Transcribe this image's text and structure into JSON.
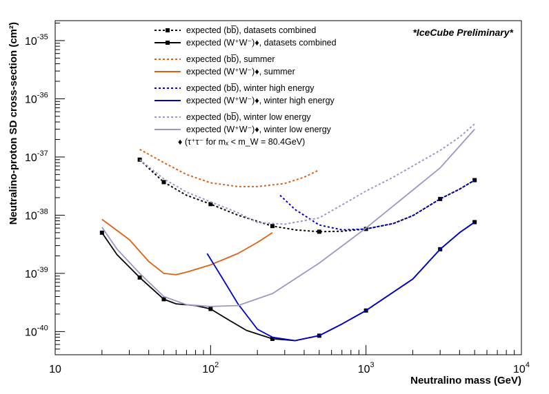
{
  "chart_data": {
    "type": "line",
    "title": "",
    "annotation": "*IceCube Preliminary*",
    "xlabel": "Neutralino mass (GeV)",
    "ylabel": "Neutralino-proton SD cross-section (cm²)",
    "xscale": "log",
    "yscale": "log",
    "xlim": [
      10,
      10000
    ],
    "ylim": [
      4e-41,
      2.2e-35
    ],
    "x_ticks": [
      {
        "v": 10,
        "base": "10",
        "exp": ""
      },
      {
        "v": 100,
        "base": "10",
        "exp": "2"
      },
      {
        "v": 1000,
        "base": "10",
        "exp": "3"
      },
      {
        "v": 10000,
        "base": "10",
        "exp": "4"
      }
    ],
    "y_ticks": [
      {
        "v": 1e-40,
        "base": "10",
        "exp": "-40"
      },
      {
        "v": 1e-39,
        "base": "10",
        "exp": "-39"
      },
      {
        "v": 1e-38,
        "base": "10",
        "exp": "-38"
      },
      {
        "v": 1e-37,
        "base": "10",
        "exp": "-37"
      },
      {
        "v": 1e-36,
        "base": "10",
        "exp": "-36"
      },
      {
        "v": 1e-35,
        "base": "10",
        "exp": "-35"
      }
    ],
    "legend_position": "top-center",
    "legend_note": "♦ (τ⁺τ⁻ for mₓ < m_W = 80.4GeV)",
    "series": [
      {
        "name": "expected (bb̅), datasets combined",
        "color": "#000000",
        "dash": "dotted",
        "markers": true,
        "points": [
          [
            35,
            9e-38
          ],
          [
            40,
            6.4e-38
          ],
          [
            50,
            3.7e-38
          ],
          [
            70,
            2.2e-38
          ],
          [
            100,
            1.55e-38
          ],
          [
            150,
            1e-38
          ],
          [
            250,
            6.5e-39
          ],
          [
            350,
            5.6e-39
          ],
          [
            500,
            5.2e-39
          ],
          [
            700,
            5.3e-39
          ],
          [
            1000,
            5.8e-39
          ],
          [
            1500,
            7.2e-39
          ],
          [
            2000,
            9.8e-39
          ],
          [
            3000,
            1.9e-38
          ],
          [
            4000,
            2.8e-38
          ],
          [
            5000,
            4e-38
          ]
        ],
        "marker_points": [
          [
            35,
            9e-38
          ],
          [
            50,
            3.7e-38
          ],
          [
            100,
            1.55e-38
          ],
          [
            250,
            6.5e-39
          ],
          [
            500,
            5.2e-39
          ],
          [
            1000,
            5.8e-39
          ],
          [
            3000,
            1.9e-38
          ],
          [
            5000,
            4e-38
          ]
        ]
      },
      {
        "name": "expected (W⁺W⁻)♦, datasets combined",
        "color": "#000000",
        "dash": "solid",
        "markers": true,
        "points": [
          [
            20,
            5e-39
          ],
          [
            25,
            2.1e-39
          ],
          [
            35,
            8.5e-40
          ],
          [
            50,
            3.6e-40
          ],
          [
            60,
            3e-40
          ],
          [
            80,
            2.8e-40
          ],
          [
            100,
            2.45e-40
          ],
          [
            130,
            1.6e-40
          ],
          [
            170,
            1.05e-40
          ],
          [
            250,
            7.5e-41
          ],
          [
            350,
            7e-41
          ],
          [
            500,
            8.5e-41
          ],
          [
            700,
            1.35e-40
          ],
          [
            1000,
            2.3e-40
          ],
          [
            2000,
            8e-40
          ],
          [
            3000,
            2.6e-39
          ],
          [
            4000,
            5e-39
          ],
          [
            5000,
            7.6e-39
          ]
        ],
        "marker_points": [
          [
            20,
            5e-39
          ],
          [
            35,
            8.5e-40
          ],
          [
            50,
            3.6e-40
          ],
          [
            100,
            2.45e-40
          ],
          [
            250,
            7.5e-41
          ],
          [
            500,
            8.5e-41
          ],
          [
            1000,
            2.3e-40
          ],
          [
            3000,
            2.6e-39
          ],
          [
            5000,
            7.6e-39
          ]
        ]
      },
      {
        "name": "expected (bb̅), summer",
        "color": "#e06010",
        "dash": "dotted",
        "markers": false,
        "points": [
          [
            35,
            1.35e-37
          ],
          [
            50,
            8e-38
          ],
          [
            70,
            5e-38
          ],
          [
            100,
            3.6e-38
          ],
          [
            150,
            3.1e-38
          ],
          [
            200,
            3.1e-38
          ],
          [
            300,
            3.5e-38
          ],
          [
            400,
            4.5e-38
          ],
          [
            500,
            6e-38
          ]
        ]
      },
      {
        "name": "expected (W⁺W⁻)♦, summer",
        "color": "#e06010",
        "dash": "solid",
        "markers": false,
        "points": [
          [
            20,
            8.5e-39
          ],
          [
            30,
            3.8e-39
          ],
          [
            40,
            1.6e-39
          ],
          [
            50,
            1e-39
          ],
          [
            60,
            9.5e-40
          ],
          [
            70,
            1.05e-39
          ],
          [
            100,
            1.4e-39
          ],
          [
            150,
            2.2e-39
          ],
          [
            200,
            3.4e-39
          ],
          [
            250,
            5e-39
          ]
        ]
      },
      {
        "name": "expected (bb̅), winter high energy",
        "color": "#0000cc",
        "dash": "dotted",
        "markers": false,
        "points": [
          [
            280,
            2.2e-38
          ],
          [
            350,
            1.25e-38
          ],
          [
            500,
            6.8e-39
          ],
          [
            700,
            5.6e-39
          ],
          [
            1000,
            5.8e-39
          ],
          [
            1500,
            7.2e-39
          ],
          [
            2000,
            9.8e-39
          ],
          [
            3000,
            1.9e-38
          ],
          [
            4000,
            2.8e-38
          ],
          [
            5000,
            4e-38
          ]
        ]
      },
      {
        "name": "expected (W⁺W⁻)♦, winter high energy",
        "color": "#0000cc",
        "dash": "solid",
        "markers": false,
        "points": [
          [
            95,
            2.2e-39
          ],
          [
            120,
            8e-40
          ],
          [
            150,
            3e-40
          ],
          [
            200,
            1.1e-40
          ],
          [
            250,
            8e-41
          ],
          [
            350,
            7e-41
          ],
          [
            500,
            8.5e-41
          ],
          [
            700,
            1.35e-40
          ],
          [
            1000,
            2.3e-40
          ],
          [
            2000,
            8e-40
          ],
          [
            3000,
            2.6e-39
          ],
          [
            4000,
            5e-39
          ],
          [
            5000,
            7.6e-39
          ]
        ]
      },
      {
        "name": "expected (bb̅), winter low energy",
        "color": "#9898c8",
        "dash": "dotted",
        "markers": false,
        "points": [
          [
            35,
            9e-38
          ],
          [
            50,
            4.2e-38
          ],
          [
            70,
            2.5e-38
          ],
          [
            100,
            1.7e-38
          ],
          [
            150,
            1.1e-38
          ],
          [
            200,
            7.5e-39
          ],
          [
            300,
            7e-39
          ],
          [
            500,
            9e-39
          ],
          [
            700,
            1.5e-38
          ],
          [
            1000,
            2.6e-38
          ],
          [
            1500,
            4.5e-38
          ],
          [
            2000,
            7e-38
          ],
          [
            3000,
            1.3e-37
          ],
          [
            4000,
            2.2e-37
          ],
          [
            5000,
            3.7e-37
          ]
        ]
      },
      {
        "name": "expected (W⁺W⁻)♦, winter low energy",
        "color": "#9898c8",
        "dash": "solid",
        "markers": false,
        "points": [
          [
            20,
            6.2e-39
          ],
          [
            25,
            2.6e-39
          ],
          [
            35,
            1e-39
          ],
          [
            50,
            4e-40
          ],
          [
            70,
            2.9e-40
          ],
          [
            100,
            2.7e-40
          ],
          [
            150,
            2.8e-40
          ],
          [
            250,
            4.5e-40
          ],
          [
            500,
            1.5e-39
          ],
          [
            1000,
            6e-39
          ],
          [
            2000,
            2.7e-38
          ],
          [
            3000,
            6.5e-38
          ],
          [
            5000,
            3e-37
          ]
        ]
      }
    ]
  }
}
